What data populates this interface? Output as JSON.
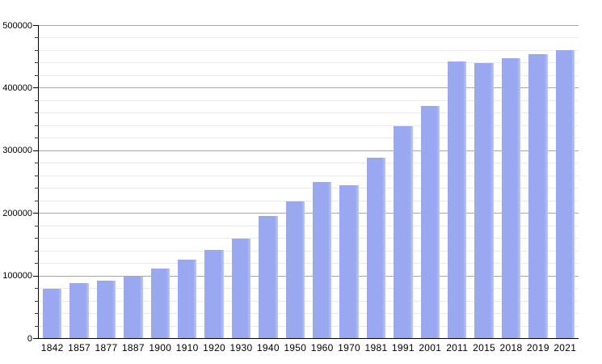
{
  "chart_data": {
    "type": "bar",
    "title": "",
    "xlabel": "",
    "ylabel": "",
    "categories": [
      "1842",
      "1857",
      "1877",
      "1887",
      "1900",
      "1910",
      "1920",
      "1930",
      "1940",
      "1950",
      "1960",
      "1970",
      "1981",
      "1991",
      "2001",
      "2011",
      "2015",
      "2018",
      "2019",
      "2021"
    ],
    "values": [
      79362,
      87803,
      91805,
      98538,
      111693,
      125057,
      141175,
      158724,
      195145,
      218375,
      249738,
      243759,
      288631,
      338250,
      370745,
      441354,
      439712,
      447182,
      453258,
      460349
    ],
    "ylim": [
      0,
      500000
    ],
    "y_major_step": 100000,
    "y_minor_step": 20000,
    "y_tick_labels": [
      "0",
      "100000",
      "200000",
      "300000",
      "400000",
      "500000"
    ],
    "grid": true,
    "legend": "none",
    "colors": {
      "bar": "#99a8f1",
      "bar_edge_light": "#bcc7f6",
      "grid_major": "#a8a8a8",
      "grid_minor": "#eaeaea",
      "axis": "#000000",
      "tick_major": "#000000",
      "tick_minor": "#3a3a3a",
      "text": "#000000",
      "background": "#ffffff"
    }
  }
}
